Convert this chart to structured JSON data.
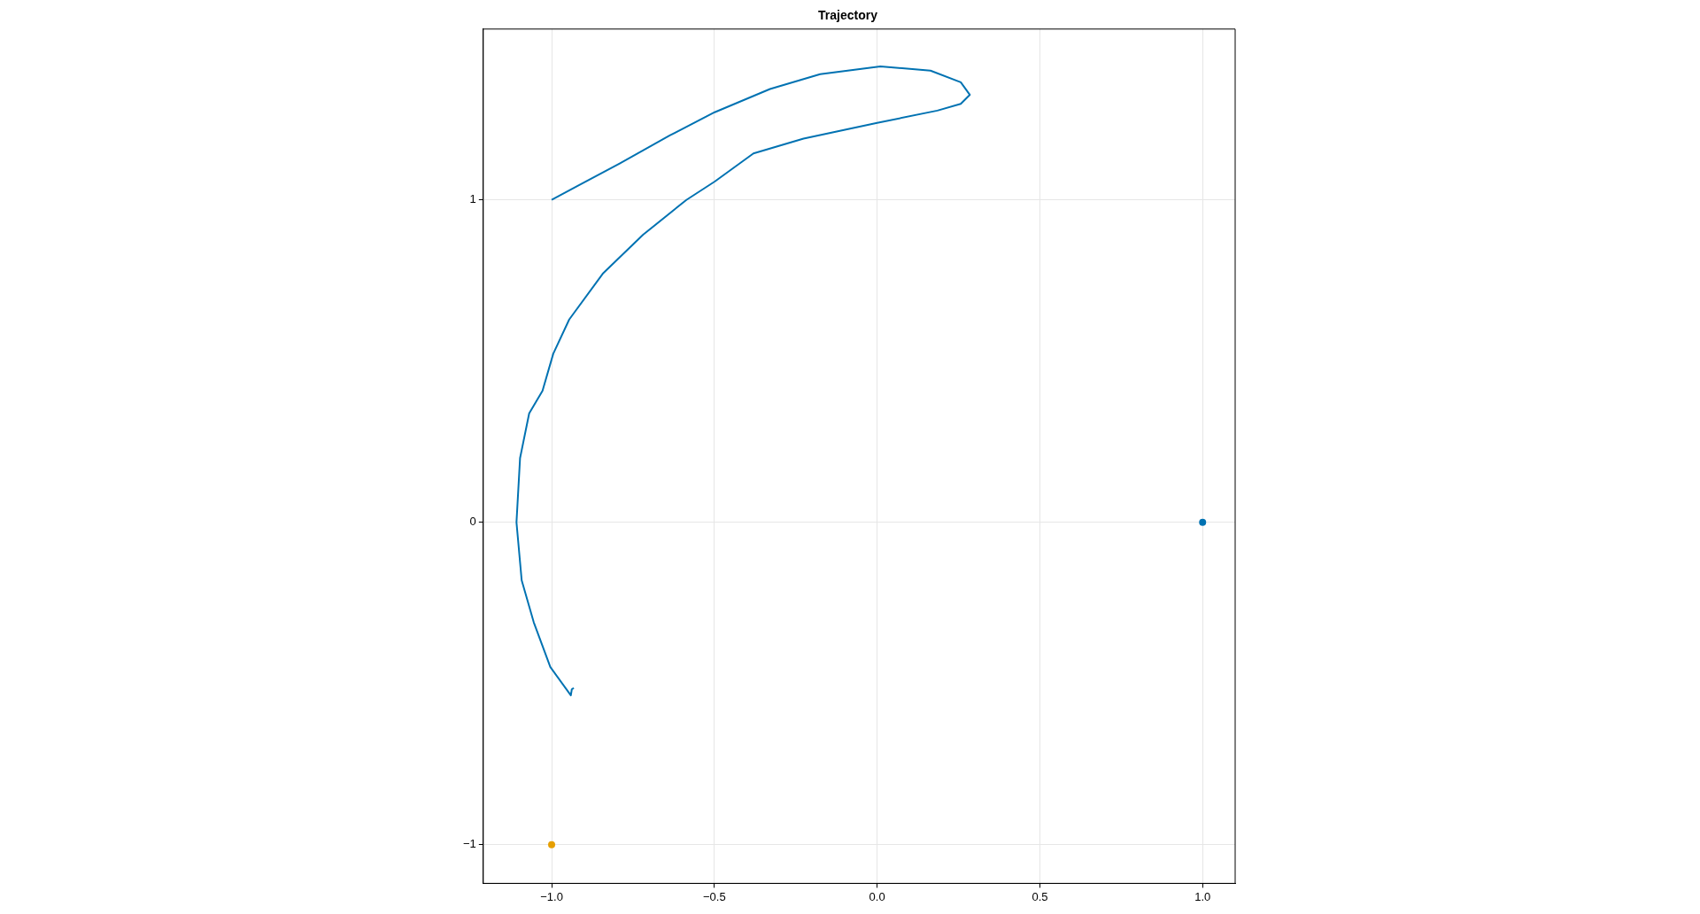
{
  "chart_data": {
    "type": "line",
    "title": "Trajectory",
    "xlim": [
      -1.21,
      1.1
    ],
    "ylim": [
      -1.12,
      1.53
    ],
    "xticks": [
      {
        "value": -1,
        "label": "−1.0"
      },
      {
        "value": -0.5,
        "label": "−0.5"
      },
      {
        "value": 0,
        "label": "0.0"
      },
      {
        "value": 0.5,
        "label": "0.5"
      },
      {
        "value": 1,
        "label": "1.0"
      }
    ],
    "yticks": [
      {
        "value": -1,
        "label": "−1"
      },
      0,
      1
    ],
    "grid": true,
    "legend": false,
    "series": [
      {
        "type": "line",
        "color": "#0072b2",
        "marker": "none",
        "x": [
          -1.0,
          -0.915,
          -0.791,
          -0.637,
          -0.499,
          -0.329,
          -0.175,
          0.01,
          0.164,
          0.257,
          0.285,
          0.257,
          0.185,
          0.0,
          -0.226,
          -0.38,
          -0.499,
          -0.586,
          -0.719,
          -0.843,
          -0.946,
          -0.995,
          -1.028,
          -1.069,
          -1.097,
          -1.108,
          -1.092,
          -1.055,
          -1.004,
          -0.941,
          -0.938,
          -0.932
        ],
        "values": [
          1.0,
          1.046,
          1.113,
          1.2,
          1.272,
          1.344,
          1.39,
          1.414,
          1.401,
          1.365,
          1.326,
          1.298,
          1.277,
          1.239,
          1.19,
          1.144,
          1.057,
          1.0,
          0.892,
          0.771,
          0.629,
          0.523,
          0.408,
          0.338,
          0.199,
          0.0,
          -0.18,
          -0.31,
          -0.449,
          -0.537,
          -0.518,
          -0.514
        ]
      },
      {
        "type": "scatter",
        "color": "#0072b2",
        "marker": "circle",
        "x": [
          1
        ],
        "values": [
          0
        ]
      },
      {
        "type": "scatter",
        "color": "#e69f00",
        "marker": "circle",
        "x": [
          -1
        ],
        "values": [
          -1
        ]
      }
    ]
  }
}
